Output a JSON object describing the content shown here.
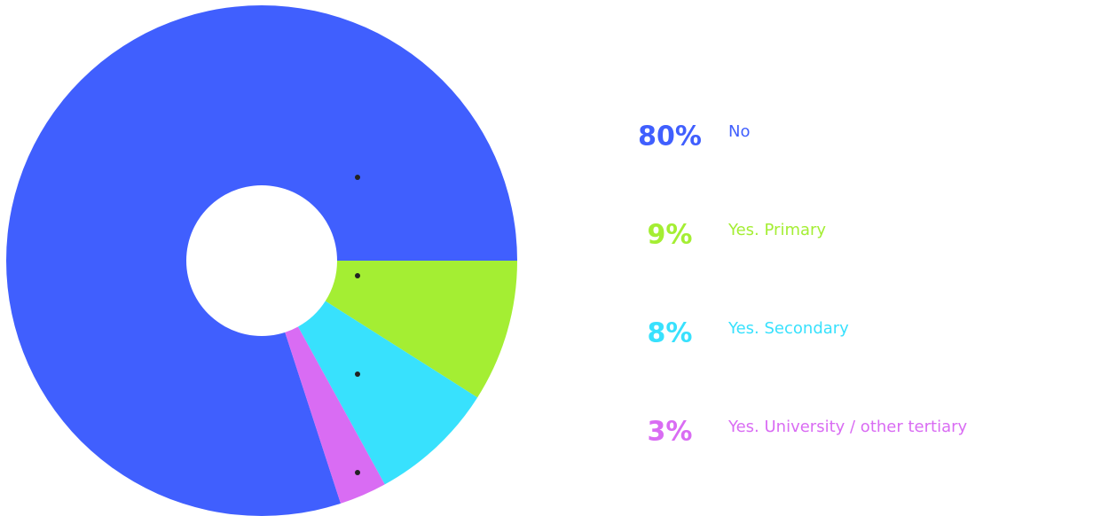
{
  "chart_data": {
    "type": "pie",
    "categories": [
      "No",
      "Yes. Primary",
      "Yes. Secondary",
      "Yes. University / other tertiary"
    ],
    "values": [
      80,
      9,
      8,
      3
    ],
    "value_labels": [
      "80%",
      "9%",
      "8%",
      "3%"
    ],
    "colors": [
      "#405ffe",
      "#a4ee33",
      "#38e1fd",
      "#d96cf3"
    ]
  }
}
